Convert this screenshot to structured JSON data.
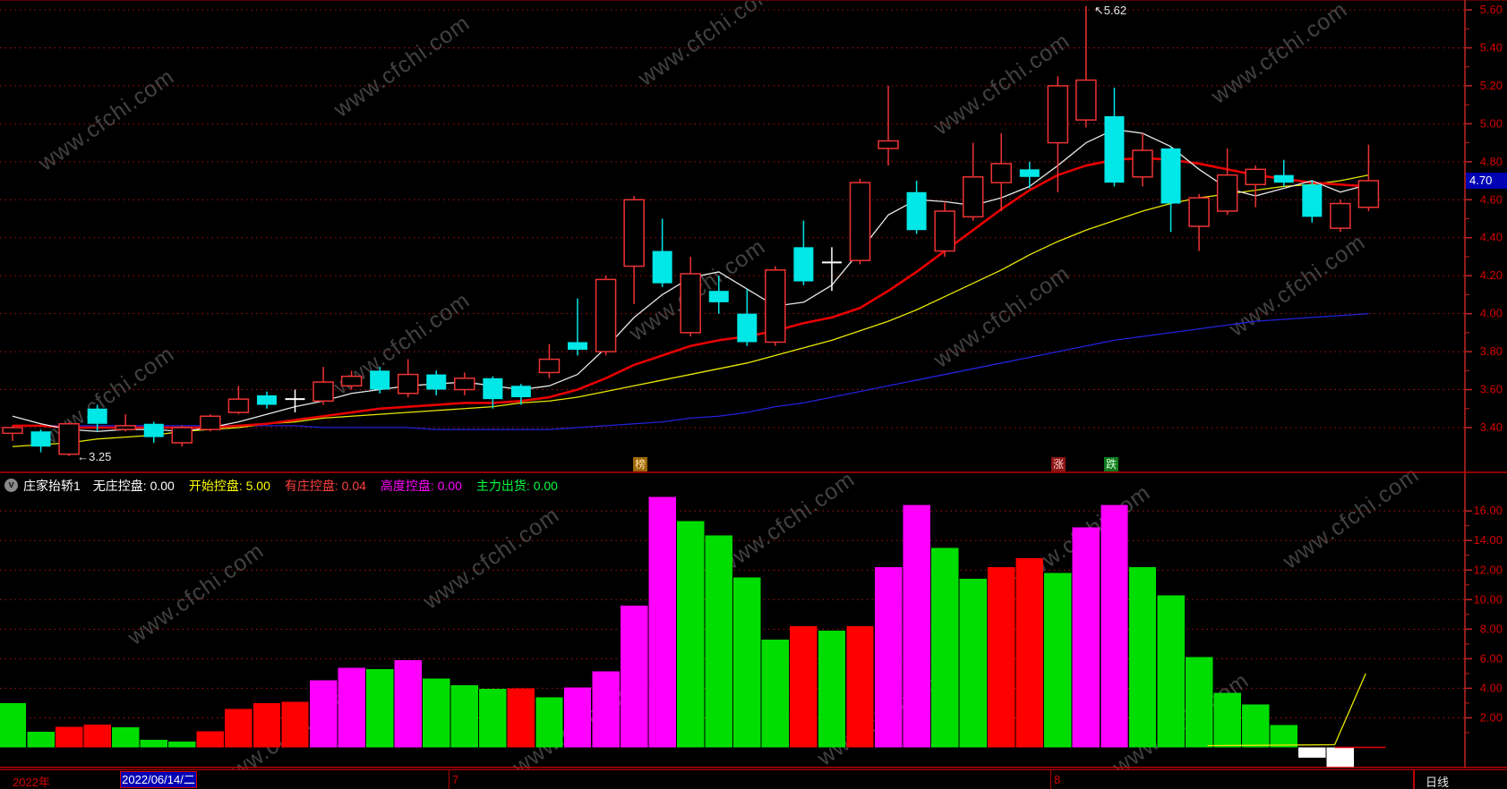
{
  "watermark": {
    "text": "www.cfchi.com"
  },
  "colors": {
    "background": "#000000",
    "axis_red": "#c22222",
    "grid_red": "#aa1515",
    "label_red": "#d40000",
    "candle_up": "#ee3333",
    "candle_down": "#00e7e7",
    "doji_white": "#ffffff",
    "ma_white": "#e8e8e8",
    "ma_yellow": "#e8e800",
    "ma_red": "#e80000",
    "ma_blue": "#2222dd",
    "bar_green": "#00dd00",
    "bar_magenta": "#ff00ff",
    "bar_red": "#ff0000",
    "bar_white": "#ffffff",
    "price_tag_bg": "#0000b4"
  },
  "price_panel": {
    "y_axis_labels": [
      "5.60",
      "5.40",
      "5.20",
      "5.00",
      "4.80",
      "4.60",
      "4.40",
      "4.20",
      "4.00",
      "3.80",
      "3.60",
      "3.40"
    ],
    "y_axis_values": [
      5.6,
      5.4,
      5.2,
      5.0,
      4.8,
      4.6,
      4.4,
      4.2,
      4.0,
      3.8,
      3.6,
      3.4
    ],
    "price_tag": {
      "text": "4.70",
      "value": 4.7
    },
    "annotations": [
      {
        "text": "←3.25",
        "points_to": {
          "candle": 2,
          "price": 3.25
        }
      },
      {
        "text": "↖5.62",
        "points_to": {
          "candle": 38,
          "price": 5.62
        }
      }
    ],
    "markers": [
      {
        "text": "榜",
        "bg": "#9c6606",
        "fg": "#ffe2a8"
      },
      {
        "text": "涨",
        "bg": "#8b1616",
        "fg": "#ffc8c8"
      },
      {
        "text": "跌",
        "bg": "#0e7a1e",
        "fg": "#d8ffd8"
      }
    ]
  },
  "indicator_panel": {
    "header": {
      "icon": "chevron-down-circle",
      "name": "庄家抬轿1",
      "fields": [
        {
          "label": "无庄控盘:",
          "value": "0.00",
          "color": "#ffffff"
        },
        {
          "label": "开始控盘:",
          "value": "5.00",
          "color": "#ffff00"
        },
        {
          "label": "有庄控盘:",
          "value": "0.04",
          "color": "#ff4040"
        },
        {
          "label": "高度控盘:",
          "value": "0.00",
          "color": "#ff00ff"
        },
        {
          "label": "主力出货:",
          "value": "0.00",
          "color": "#00ff40"
        }
      ]
    },
    "y_axis_labels": [
      "16.00",
      "14.00",
      "12.00",
      "10.00",
      "8.00",
      "6.00",
      "4.00",
      "2.00"
    ],
    "y_axis_values": [
      16,
      14,
      12,
      10,
      8,
      6,
      4,
      2
    ]
  },
  "status_bar": {
    "year": "2022年",
    "date": "2022/06/14/二",
    "month_labels": [
      "7",
      "8"
    ],
    "period": "日线"
  },
  "chart_data": [
    {
      "type": "candlestick",
      "title": "daily-k-line",
      "y_range": [
        3.3,
        5.7
      ],
      "note": "ohlc entries: [open, high, low, close, style] style r=red hollow up, c=cyan filled down, d=white doji",
      "ohlc": [
        [
          3.37,
          3.41,
          3.33,
          3.4,
          "r"
        ],
        [
          3.38,
          3.39,
          3.27,
          3.3,
          "c"
        ],
        [
          3.26,
          3.43,
          3.25,
          3.42,
          "r"
        ],
        [
          3.5,
          3.52,
          3.38,
          3.42,
          "c"
        ],
        [
          3.39,
          3.47,
          3.38,
          3.41,
          "r"
        ],
        [
          3.42,
          3.43,
          3.32,
          3.35,
          "c"
        ],
        [
          3.32,
          3.41,
          3.3,
          3.4,
          "r"
        ],
        [
          3.39,
          3.47,
          3.38,
          3.46,
          "r"
        ],
        [
          3.48,
          3.62,
          3.47,
          3.55,
          "r"
        ],
        [
          3.57,
          3.59,
          3.5,
          3.52,
          "c"
        ],
        [
          3.55,
          3.6,
          3.48,
          3.55,
          "d"
        ],
        [
          3.54,
          3.72,
          3.52,
          3.64,
          "r"
        ],
        [
          3.62,
          3.7,
          3.6,
          3.67,
          "r"
        ],
        [
          3.7,
          3.72,
          3.58,
          3.6,
          "c"
        ],
        [
          3.58,
          3.76,
          3.56,
          3.68,
          "r"
        ],
        [
          3.68,
          3.7,
          3.57,
          3.6,
          "c"
        ],
        [
          3.6,
          3.69,
          3.57,
          3.66,
          "r"
        ],
        [
          3.66,
          3.67,
          3.5,
          3.55,
          "c"
        ],
        [
          3.62,
          3.63,
          3.52,
          3.56,
          "c"
        ],
        [
          3.69,
          3.84,
          3.66,
          3.76,
          "r"
        ],
        [
          3.85,
          4.08,
          3.78,
          3.81,
          "c"
        ],
        [
          3.8,
          4.2,
          3.78,
          4.18,
          "r"
        ],
        [
          4.25,
          4.62,
          4.05,
          4.6,
          "r"
        ],
        [
          4.33,
          4.5,
          4.14,
          4.16,
          "c"
        ],
        [
          3.9,
          4.3,
          3.88,
          4.21,
          "r"
        ],
        [
          4.12,
          4.2,
          4.0,
          4.06,
          "c"
        ],
        [
          4.0,
          4.13,
          3.83,
          3.85,
          "c"
        ],
        [
          3.85,
          4.25,
          3.83,
          4.23,
          "r"
        ],
        [
          4.35,
          4.49,
          4.15,
          4.17,
          "c"
        ],
        [
          4.27,
          4.35,
          4.12,
          4.27,
          "d"
        ],
        [
          4.28,
          4.71,
          4.26,
          4.69,
          "r"
        ],
        [
          4.87,
          5.2,
          4.78,
          4.91,
          "r"
        ],
        [
          4.64,
          4.7,
          4.42,
          4.44,
          "c"
        ],
        [
          4.33,
          4.59,
          4.3,
          4.54,
          "r"
        ],
        [
          4.51,
          4.9,
          4.49,
          4.72,
          "r"
        ],
        [
          4.69,
          4.95,
          4.54,
          4.79,
          "r"
        ],
        [
          4.76,
          4.8,
          4.66,
          4.72,
          "c"
        ],
        [
          4.9,
          5.25,
          4.64,
          5.2,
          "r"
        ],
        [
          5.02,
          5.62,
          4.98,
          5.23,
          "r"
        ],
        [
          5.04,
          5.19,
          4.67,
          4.69,
          "c"
        ],
        [
          4.72,
          4.95,
          4.67,
          4.86,
          "r"
        ],
        [
          4.87,
          4.88,
          4.43,
          4.58,
          "c"
        ],
        [
          4.46,
          4.63,
          4.33,
          4.61,
          "r"
        ],
        [
          4.54,
          4.87,
          4.52,
          4.73,
          "r"
        ],
        [
          4.68,
          4.78,
          4.56,
          4.76,
          "r"
        ],
        [
          4.73,
          4.81,
          4.67,
          4.69,
          "c"
        ],
        [
          4.68,
          4.7,
          4.48,
          4.51,
          "c"
        ],
        [
          4.45,
          4.6,
          4.43,
          4.58,
          "r"
        ],
        [
          4.56,
          4.89,
          4.54,
          4.7,
          "r"
        ]
      ],
      "ma_lines": {
        "white": [
          3.46,
          3.42,
          3.39,
          3.38,
          3.39,
          3.39,
          3.38,
          3.4,
          3.43,
          3.47,
          3.51,
          3.54,
          3.58,
          3.6,
          3.62,
          3.63,
          3.64,
          3.62,
          3.6,
          3.62,
          3.68,
          3.82,
          3.98,
          4.1,
          4.19,
          4.22,
          4.13,
          4.04,
          4.06,
          4.15,
          4.33,
          4.52,
          4.6,
          4.59,
          4.57,
          4.61,
          4.67,
          4.78,
          4.9,
          4.97,
          4.95,
          4.88,
          4.76,
          4.66,
          4.62,
          4.66,
          4.7,
          4.64,
          4.68
        ],
        "yellow": [
          3.3,
          3.31,
          3.32,
          3.34,
          3.35,
          3.36,
          3.38,
          3.39,
          3.4,
          3.42,
          3.43,
          3.45,
          3.46,
          3.47,
          3.48,
          3.49,
          3.5,
          3.51,
          3.53,
          3.54,
          3.56,
          3.59,
          3.62,
          3.65,
          3.68,
          3.71,
          3.74,
          3.78,
          3.82,
          3.86,
          3.91,
          3.96,
          4.02,
          4.09,
          4.16,
          4.23,
          4.31,
          4.38,
          4.44,
          4.49,
          4.54,
          4.58,
          4.61,
          4.63,
          4.65,
          4.67,
          4.68,
          4.7,
          4.73
        ],
        "red": [
          3.41,
          3.41,
          3.4,
          3.4,
          3.4,
          3.4,
          3.4,
          3.4,
          3.41,
          3.42,
          3.44,
          3.46,
          3.48,
          3.5,
          3.51,
          3.52,
          3.53,
          3.53,
          3.54,
          3.56,
          3.6,
          3.66,
          3.73,
          3.78,
          3.83,
          3.86,
          3.88,
          3.91,
          3.95,
          3.98,
          4.03,
          4.12,
          4.22,
          4.33,
          4.44,
          4.55,
          4.65,
          4.73,
          4.78,
          4.81,
          4.82,
          4.81,
          4.79,
          4.76,
          4.73,
          4.71,
          4.69,
          4.68,
          4.67
        ],
        "blue": [
          3.41,
          3.41,
          3.41,
          3.41,
          3.41,
          3.41,
          3.41,
          3.41,
          3.41,
          3.41,
          3.41,
          3.4,
          3.4,
          3.4,
          3.4,
          3.39,
          3.39,
          3.39,
          3.39,
          3.39,
          3.4,
          3.41,
          3.42,
          3.43,
          3.45,
          3.46,
          3.48,
          3.51,
          3.53,
          3.56,
          3.59,
          3.62,
          3.65,
          3.68,
          3.71,
          3.74,
          3.77,
          3.8,
          3.83,
          3.86,
          3.88,
          3.9,
          3.92,
          3.94,
          3.96,
          3.97,
          3.98,
          3.99,
          4.0
        ]
      }
    },
    {
      "type": "bar",
      "title": "庄家抬轿1",
      "y_range": [
        -1.5,
        17
      ],
      "note": "color g=green r=red m=magenta w=white(below zero), null=no bar",
      "values": [
        {
          "v": 3.0,
          "color": "g"
        },
        {
          "v": 1.05,
          "color": "g"
        },
        {
          "v": 1.4,
          "color": "r"
        },
        {
          "v": 1.55,
          "color": "r"
        },
        {
          "v": 1.35,
          "color": "g"
        },
        {
          "v": 0.5,
          "color": "g"
        },
        {
          "v": 0.4,
          "color": "g"
        },
        {
          "v": 1.1,
          "color": "r"
        },
        {
          "v": 2.6,
          "color": "r"
        },
        {
          "v": 3.0,
          "color": "r"
        },
        {
          "v": 3.1,
          "color": "r"
        },
        {
          "v": 4.55,
          "color": "m"
        },
        {
          "v": 5.4,
          "color": "m"
        },
        {
          "v": 5.3,
          "color": "g"
        },
        {
          "v": 5.9,
          "color": "m"
        },
        {
          "v": 4.65,
          "color": "g"
        },
        {
          "v": 4.2,
          "color": "g"
        },
        {
          "v": 3.95,
          "color": "g"
        },
        {
          "v": 4.0,
          "color": "r"
        },
        {
          "v": 3.4,
          "color": "g"
        },
        {
          "v": 4.05,
          "color": "m"
        },
        {
          "v": 5.15,
          "color": "m"
        },
        {
          "v": 9.6,
          "color": "m"
        },
        {
          "v": 16.95,
          "color": "m"
        },
        {
          "v": 15.3,
          "color": "g"
        },
        {
          "v": 14.35,
          "color": "g"
        },
        {
          "v": 11.5,
          "color": "g"
        },
        {
          "v": 7.3,
          "color": "g"
        },
        {
          "v": 8.2,
          "color": "r"
        },
        {
          "v": 7.9,
          "color": "g"
        },
        {
          "v": 8.2,
          "color": "r"
        },
        {
          "v": 12.2,
          "color": "m"
        },
        {
          "v": 16.4,
          "color": "m"
        },
        {
          "v": 13.5,
          "color": "g"
        },
        {
          "v": 11.4,
          "color": "g"
        },
        {
          "v": 12.2,
          "color": "r"
        },
        {
          "v": 12.8,
          "color": "r"
        },
        {
          "v": 11.8,
          "color": "g"
        },
        {
          "v": 14.9,
          "color": "m"
        },
        {
          "v": 16.4,
          "color": "m"
        },
        {
          "v": 12.2,
          "color": "g"
        },
        {
          "v": 10.3,
          "color": "g"
        },
        {
          "v": 6.1,
          "color": "g"
        },
        {
          "v": 3.7,
          "color": "g"
        },
        {
          "v": 2.9,
          "color": "g"
        },
        {
          "v": 1.5,
          "color": "g"
        },
        {
          "v": -0.7,
          "color": "w"
        },
        {
          "v": -1.4,
          "color": "w"
        },
        null
      ],
      "yellow_line_points": [
        [
          42.3,
          0.12
        ],
        [
          46.8,
          0.18
        ],
        [
          47.9,
          5.0
        ]
      ],
      "red_zero_segment": {
        "from": 46.8,
        "to": 48.6,
        "value": 0
      }
    }
  ]
}
